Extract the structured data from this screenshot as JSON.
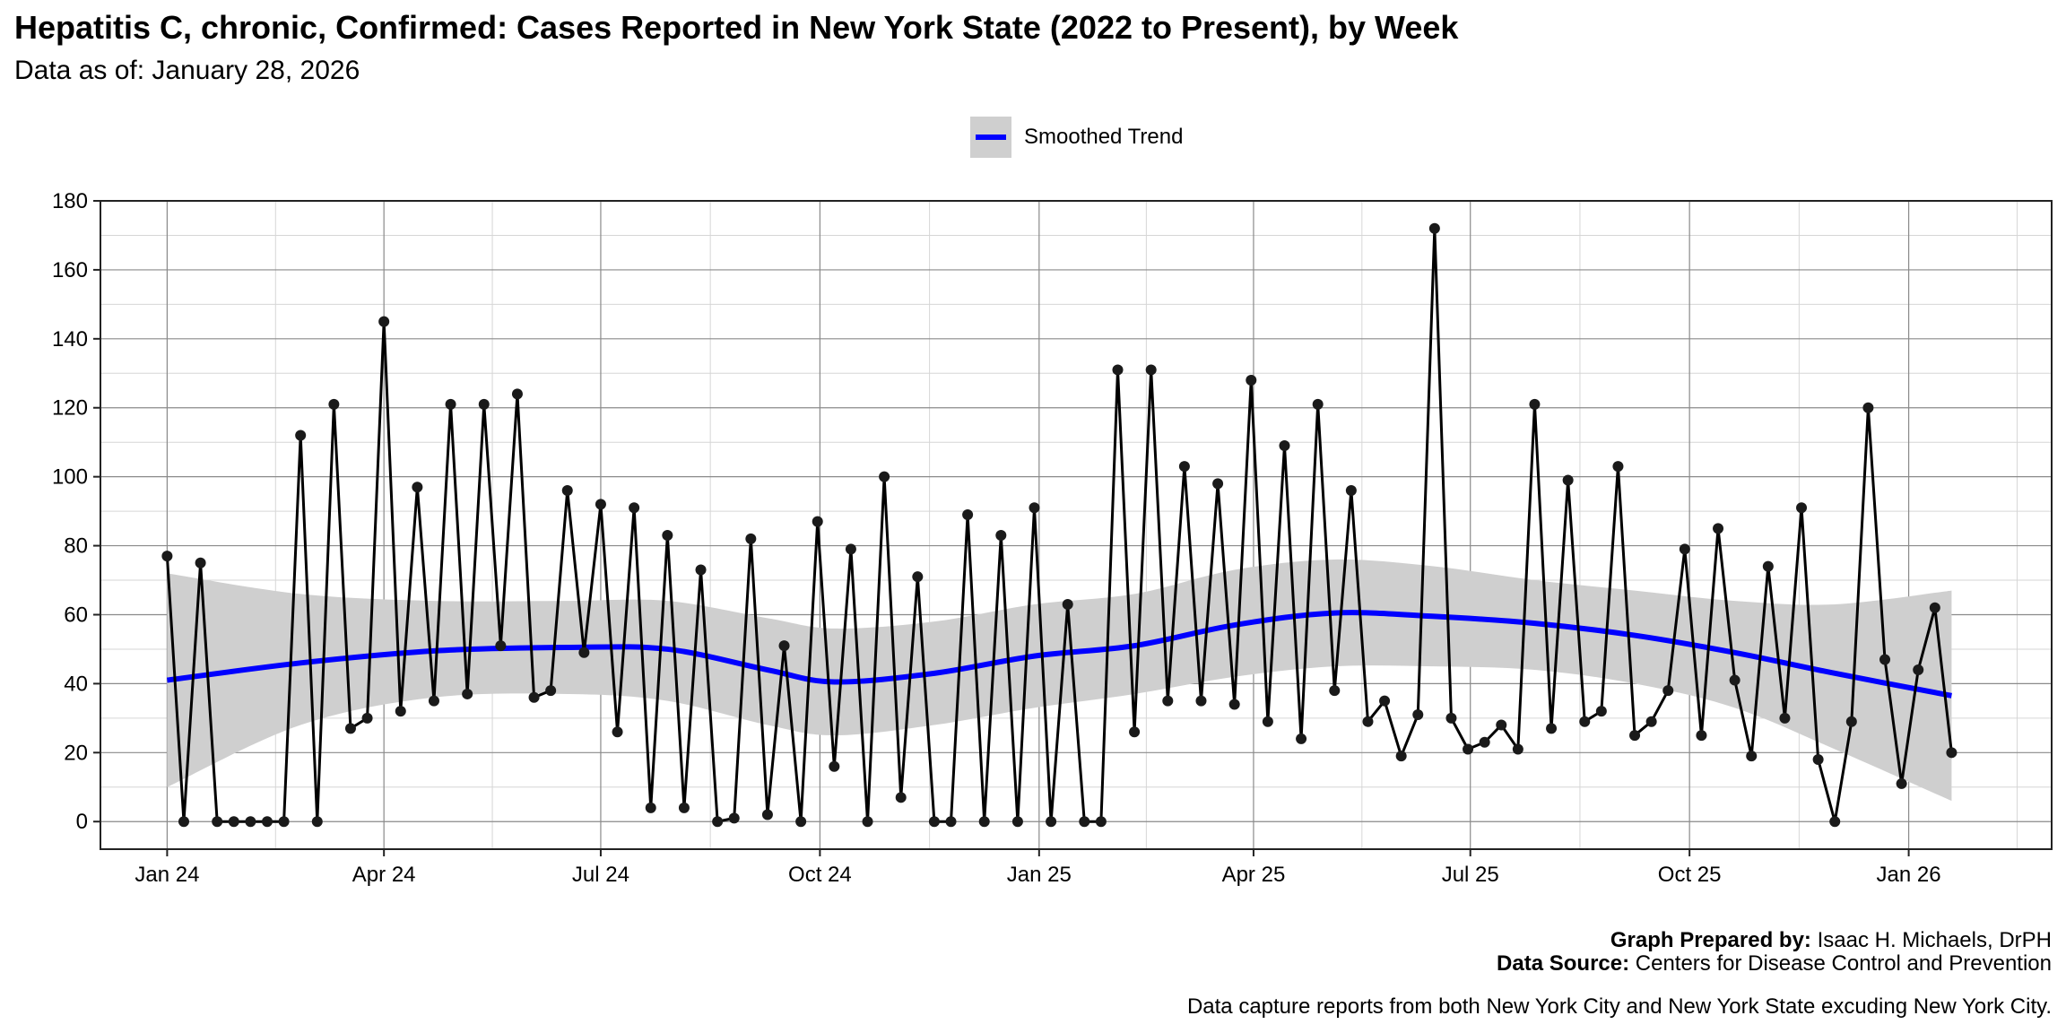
{
  "header": {
    "title": "Hepatitis C, chronic, Confirmed: Cases Reported in New York State (2022 to Present), by Week",
    "subtitle": "Data as of: January 28, 2026"
  },
  "legend": {
    "label": "Smoothed Trend",
    "line_color": "#0000ff",
    "band_color": "#cfcfcf"
  },
  "footer": {
    "prepared_by_label": "Graph Prepared by:",
    "prepared_by_value": " Isaac H. Michaels, DrPH",
    "source_label": "Data Source:",
    "source_value": " Centers for Disease Control and Prevention",
    "note": "Data capture reports from both New York City and New York State excuding New York City."
  },
  "chart_data": {
    "type": "line",
    "title": "Hepatitis C, chronic, Confirmed: Cases Reported in New York State (2022 to Present), by Week",
    "subtitle": "Data as of: January 28, 2026",
    "xlabel": "",
    "ylabel": "",
    "x_start": "2024-01-01",
    "x_interval": "week",
    "xlim": [
      "2023-12-04",
      "2026-03-02"
    ],
    "ylim": [
      -8,
      180
    ],
    "grid": true,
    "legend_position": "top",
    "x_ticks": [
      {
        "date": "2024-01-01",
        "label": "Jan 24"
      },
      {
        "date": "2024-04-01",
        "label": "Apr 24"
      },
      {
        "date": "2024-07-01",
        "label": "Jul 24"
      },
      {
        "date": "2024-10-01",
        "label": "Oct 24"
      },
      {
        "date": "2025-01-01",
        "label": "Jan 25"
      },
      {
        "date": "2025-04-01",
        "label": "Apr 25"
      },
      {
        "date": "2025-07-01",
        "label": "Jul 25"
      },
      {
        "date": "2025-10-01",
        "label": "Oct 25"
      },
      {
        "date": "2026-01-01",
        "label": "Jan 26"
      }
    ],
    "y_ticks": [
      0,
      20,
      40,
      60,
      80,
      100,
      120,
      140,
      160,
      180
    ],
    "series": [
      {
        "name": "Weekly Cases",
        "color": "#000000",
        "values": [
          77,
          0,
          75,
          0,
          0,
          0,
          0,
          0,
          112,
          0,
          121,
          27,
          30,
          145,
          32,
          97,
          35,
          121,
          37,
          121,
          51,
          124,
          36,
          38,
          96,
          49,
          92,
          26,
          91,
          4,
          83,
          4,
          73,
          0,
          1,
          82,
          2,
          51,
          0,
          87,
          16,
          79,
          0,
          100,
          7,
          71,
          0,
          0,
          89,
          0,
          83,
          0,
          91,
          0,
          63,
          0,
          0,
          131,
          26,
          131,
          35,
          103,
          35,
          98,
          34,
          128,
          29,
          109,
          24,
          121,
          38,
          96,
          29,
          35,
          19,
          31,
          172,
          30,
          21,
          23,
          28,
          21,
          121,
          27,
          99,
          29,
          32,
          103,
          25,
          29,
          38,
          79,
          25,
          85,
          41,
          19,
          74,
          30,
          91,
          18,
          0,
          29,
          120,
          47,
          11,
          44,
          62,
          20
        ]
      },
      {
        "name": "Smoothed Trend",
        "color": "#0000ff",
        "anchor_weeks": [
          0,
          8,
          16,
          24,
          30,
          36,
          40,
          46,
          52,
          58,
          64,
          70,
          76,
          82,
          88,
          94,
          100,
          107
        ],
        "values": [
          41,
          46,
          49.5,
          50.5,
          50,
          44,
          40.5,
          43,
          48,
          51,
          57,
          60.5,
          59.5,
          57.5,
          54,
          49,
          43,
          36.5
        ],
        "band_lower": [
          10,
          28,
          36,
          37,
          35,
          28,
          25,
          28,
          33,
          37,
          42,
          45,
          45,
          44,
          40,
          33,
          21,
          6
        ],
        "band_upper": [
          72,
          66,
          64,
          64,
          64,
          59,
          56,
          58,
          63,
          66,
          73,
          76,
          74,
          70,
          67,
          64,
          63,
          67
        ]
      }
    ]
  }
}
